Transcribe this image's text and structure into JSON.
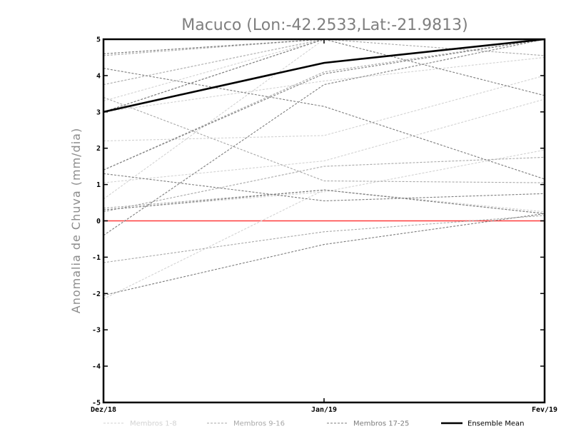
{
  "chart_data": {
    "type": "line",
    "title": "Macuco (Lon:-42.2533,Lat:-21.9813)",
    "xlabel": "",
    "ylabel": "Anomalia de Chuva (mm/dia)",
    "categories": [
      "Dez/18",
      "Jan/19",
      "Fev/19"
    ],
    "ylim": [
      -5,
      5
    ],
    "yticks": [
      "5",
      "4",
      "3",
      "2",
      "1",
      "0",
      "-1",
      "-2",
      "-3",
      "-4",
      "-5"
    ],
    "ytick_values": [
      5,
      4,
      3,
      2,
      1,
      0,
      -1,
      -2,
      -3,
      -4,
      -5
    ],
    "grid": false,
    "zero_line": {
      "value": 0,
      "color": "#ff3b3b"
    },
    "legend": [
      {
        "label": "Membros 1-8",
        "color": "#d2d2d2",
        "style": "dashed"
      },
      {
        "label": "Membros 9-16",
        "color": "#a8a8a8",
        "style": "dashed"
      },
      {
        "label": "Membros 17-25",
        "color": "#7c7c7c",
        "style": "dashed"
      },
      {
        "label": "Ensemble Mean",
        "color": "#000000",
        "style": "solid"
      }
    ],
    "series": [
      {
        "group": 0,
        "values": [
          4.6,
          5.0,
          5.0
        ]
      },
      {
        "group": 0,
        "values": [
          2.2,
          2.35,
          4.0
        ]
      },
      {
        "group": 0,
        "values": [
          1.05,
          1.65,
          3.35
        ]
      },
      {
        "group": 0,
        "values": [
          0.3,
          0.8,
          1.95
        ]
      },
      {
        "group": 0,
        "values": [
          -2.15,
          0.85,
          0.25
        ]
      },
      {
        "group": 0,
        "values": [
          0.6,
          5.0,
          5.0
        ]
      },
      {
        "group": 0,
        "values": [
          3.0,
          3.85,
          4.5
        ]
      },
      {
        "group": 0,
        "values": [
          3.3,
          5.0,
          5.0
        ]
      },
      {
        "group": 1,
        "values": [
          3.4,
          1.1,
          1.05
        ]
      },
      {
        "group": 1,
        "values": [
          4.55,
          5.0,
          4.55
        ]
      },
      {
        "group": 1,
        "values": [
          0.25,
          1.5,
          1.75
        ]
      },
      {
        "group": 1,
        "values": [
          3.0,
          5.0,
          5.0
        ]
      },
      {
        "group": 1,
        "values": [
          1.4,
          4.1,
          5.0
        ]
      },
      {
        "group": 1,
        "values": [
          3.75,
          5.0,
          5.0
        ]
      },
      {
        "group": 1,
        "values": [
          0.35,
          0.85,
          0.2
        ]
      },
      {
        "group": 1,
        "values": [
          -1.15,
          -0.3,
          0.15
        ]
      },
      {
        "group": 2,
        "values": [
          4.6,
          5.0,
          5.0
        ]
      },
      {
        "group": 2,
        "values": [
          3.0,
          5.0,
          5.0
        ]
      },
      {
        "group": 2,
        "values": [
          1.3,
          0.55,
          0.75
        ]
      },
      {
        "group": 2,
        "values": [
          -2.05,
          -0.65,
          0.2
        ]
      },
      {
        "group": 2,
        "values": [
          -0.4,
          3.75,
          5.0
        ]
      },
      {
        "group": 2,
        "values": [
          4.2,
          3.15,
          1.15
        ]
      },
      {
        "group": 2,
        "values": [
          1.4,
          4.05,
          5.0
        ]
      },
      {
        "group": 2,
        "values": [
          5.0,
          5.0,
          3.45
        ]
      },
      {
        "group": 2,
        "values": [
          0.3,
          0.85,
          0.2
        ]
      },
      {
        "group": 3,
        "name": "Ensemble Mean",
        "values": [
          3.0,
          4.35,
          5.0
        ]
      }
    ]
  }
}
